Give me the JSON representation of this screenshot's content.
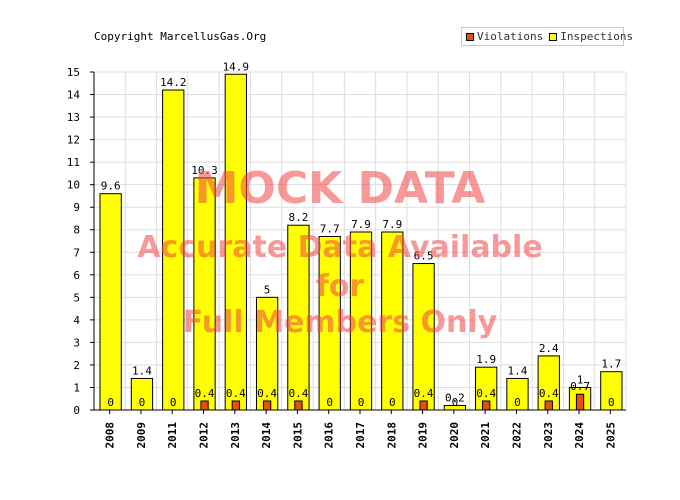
{
  "copyright": "Copyright MarcellusGas.Org",
  "chart_data": {
    "type": "bar",
    "categories": [
      "2008",
      "2009",
      "2011",
      "2012",
      "2013",
      "2014",
      "2015",
      "2016",
      "2017",
      "2018",
      "2019",
      "2020",
      "2021",
      "2022",
      "2023",
      "2024",
      "2025"
    ],
    "series": [
      {
        "name": "Violations",
        "color": "#e8500a",
        "values": [
          0,
          0,
          0,
          0.4,
          0.4,
          0.4,
          0.4,
          0,
          0,
          0,
          0.4,
          0,
          0.4,
          0,
          0.4,
          0.7,
          0
        ],
        "labels": [
          "0",
          "0",
          "0",
          "0.4",
          "0.4",
          "0.4",
          "0.4",
          "0",
          "0",
          "0",
          "0.4",
          "0",
          "0.4",
          "0",
          "0.4",
          "0.7",
          "0"
        ]
      },
      {
        "name": "Inspections",
        "color": "#ffff00",
        "values": [
          9.6,
          1.4,
          14.2,
          10.3,
          14.9,
          5,
          8.2,
          7.7,
          7.9,
          7.9,
          6.5,
          0.2,
          1.9,
          1.4,
          2.4,
          1,
          1.7
        ],
        "labels": [
          "9.6",
          "1.4",
          "14.2",
          "10.3",
          "14.9",
          "5",
          "8.2",
          "7.7",
          "7.9",
          "7.9",
          "6.5",
          "0.2",
          "1.9",
          "1.4",
          "2.4",
          "1",
          "1.7"
        ]
      }
    ],
    "ylim": [
      0,
      15
    ],
    "yticks": [
      0,
      1,
      2,
      3,
      4,
      5,
      6,
      7,
      8,
      9,
      10,
      11,
      12,
      13,
      14,
      15
    ],
    "grid": true,
    "legend_position": "top-right"
  },
  "watermark": {
    "line1": "MOCK DATA",
    "line2": "Accurate Data Available",
    "line3": "for",
    "line4": "Full Members Only"
  }
}
